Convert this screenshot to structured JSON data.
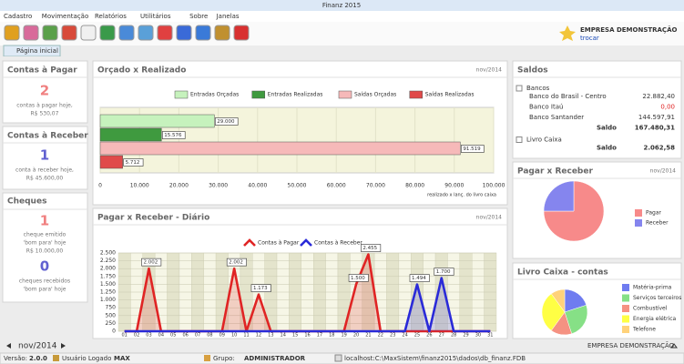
{
  "window": {
    "title": "Finanz 2015"
  },
  "menu": [
    "Cadastro",
    "Movimentação",
    "Relatórios",
    "Utilitários",
    "Sobre",
    "Janelas"
  ],
  "company": {
    "name": "EMPRESA DEMONSTRAÇÃO",
    "action": "trocar"
  },
  "tab": "Página inicial",
  "panels": {
    "pagar": {
      "title": "Contas à Pagar",
      "count": "2",
      "text": "contas à pagar hoje,",
      "amount": "R$ 530,07"
    },
    "receber": {
      "title": "Contas à Receber",
      "count": "1",
      "text": "conta à receber hoje,",
      "amount": "R$ 45.600,00"
    },
    "cheques": {
      "title": "Cheques",
      "issued_count": "1",
      "issued_text": "cheque emitido",
      "issued_when": "'bom para' hoje",
      "issued_amount": "R$ 10.000,00",
      "received_count": "0",
      "received_text": "cheques recebidos",
      "received_when": "'bom para' hoje"
    }
  },
  "period": "nov/2014",
  "saldos": {
    "title": "Saldos",
    "groups": [
      {
        "name": "Bancos",
        "rows": [
          {
            "name": "Banco do Brasil - Centro",
            "value": "22.882,40"
          },
          {
            "name": "Banco Itaú",
            "value": "0,00"
          },
          {
            "name": "Banco Santander",
            "value": "144.597,91"
          }
        ],
        "total_label": "Saldo",
        "total": "167.480,31"
      },
      {
        "name": "Livro Caixa",
        "rows": [],
        "total_label": "Saldo",
        "total": "2.062,58"
      }
    ]
  },
  "chart_data": [
    {
      "type": "hbar",
      "title": "Orçado x Realizado",
      "period": "nov/2014",
      "categories": [
        "Entradas Orçadas",
        "Entradas Realizadas",
        "Saídas Orçadas",
        "Saídas Realizadas"
      ],
      "values": [
        29000,
        15576,
        91519,
        5712
      ],
      "value_labels": [
        "29.000",
        "15.576",
        "91.519",
        "5.712"
      ],
      "colors": [
        "#c6f2bd",
        "#3f9a3f",
        "#f6b9b9",
        "#e04a4a"
      ],
      "xlim": [
        0,
        100000
      ],
      "xticks": [
        0,
        {
          "value": 10000,
          "label": "10.000"
        },
        {
          "value": 20000,
          "label": "20.000"
        },
        {
          "value": 30000,
          "label": "30.000"
        },
        {
          "value": 40000,
          "label": "40.000"
        },
        {
          "value": 50000,
          "label": "50.000"
        },
        {
          "value": 60000,
          "label": "60.000"
        },
        {
          "value": 70000,
          "label": "70.000"
        },
        {
          "value": 80000,
          "label": "80.000"
        },
        {
          "value": 90000,
          "label": "90.000"
        },
        {
          "value": 100000,
          "label": "100.000"
        }
      ],
      "note": "realizado x lanç. do livro caixa",
      "grid": true
    },
    {
      "type": "area",
      "title": "Pagar x Receber - Diário",
      "period": "nov/2014",
      "categories": [
        "01",
        "02",
        "03",
        "04",
        "05",
        "06",
        "07",
        "08",
        "09",
        "10",
        "11",
        "12",
        "13",
        "14",
        "15",
        "16",
        "17",
        "18",
        "19",
        "20",
        "21",
        "22",
        "23",
        "24",
        "25",
        "26",
        "27",
        "28",
        "29",
        "30",
        "31"
      ],
      "series": [
        {
          "name": "Contas à Pagar",
          "color": "#e02424",
          "values": [
            0,
            0,
            2002,
            0,
            0,
            0,
            0,
            0,
            0,
            2002,
            0,
            1173,
            0,
            0,
            0,
            0,
            0,
            0,
            0,
            1500,
            2455,
            0,
            0,
            0,
            0,
            0,
            0,
            0,
            0,
            0,
            0
          ],
          "value_labels": [
            null,
            null,
            "2.002",
            null,
            null,
            null,
            null,
            null,
            null,
            "2.002",
            null,
            "1.173",
            null,
            null,
            null,
            null,
            null,
            null,
            null,
            "1.500",
            "2.455",
            null,
            null,
            null,
            null,
            null,
            null,
            null,
            null,
            null,
            null
          ]
        },
        {
          "name": "Contas à Receber",
          "color": "#2a2ad8",
          "values": [
            0,
            0,
            0,
            0,
            0,
            0,
            0,
            0,
            0,
            0,
            0,
            0,
            0,
            0,
            0,
            0,
            0,
            0,
            0,
            0,
            0,
            0,
            0,
            0,
            1494,
            0,
            1700,
            0,
            0,
            0,
            0
          ],
          "value_labels": [
            null,
            null,
            null,
            null,
            null,
            null,
            null,
            null,
            null,
            null,
            null,
            null,
            null,
            null,
            null,
            null,
            null,
            null,
            null,
            null,
            null,
            null,
            null,
            null,
            "1.494",
            null,
            "1.700",
            null,
            null,
            null,
            null
          ]
        }
      ],
      "ylim": [
        0,
        2500
      ],
      "yticks": [
        0,
        250,
        500,
        750,
        {
          "value": 1000,
          "label": "1.000"
        },
        {
          "value": 1250,
          "label": "1.250"
        },
        {
          "value": 1500,
          "label": "1.500"
        },
        {
          "value": 1750,
          "label": "1.750"
        },
        {
          "value": 2000,
          "label": "2.000"
        },
        {
          "value": 2250,
          "label": "2.250"
        },
        {
          "value": 2500,
          "label": "2.500"
        }
      ],
      "grid": true
    },
    {
      "type": "pie",
      "title": "Pagar x Receber",
      "period": "nov/2014",
      "categories": [
        "Pagar",
        "Receber"
      ],
      "values": [
        75,
        25
      ],
      "colors": [
        "#f78a8a",
        "#8585ee"
      ]
    },
    {
      "type": "pie",
      "title": "Livro Caixa - contas",
      "categories": [
        "Matéria-prima",
        "Serviços terceiros",
        "Combustível",
        "Energia elétrica",
        "Telefone"
      ],
      "values": [
        20,
        25,
        15,
        30,
        10
      ],
      "colors": [
        "#6f7cf0",
        "#86e086",
        "#f59282",
        "#ffff44",
        "#ffd27a"
      ]
    }
  ],
  "status": {
    "version_label": "Versão:",
    "version": "2.0.0",
    "user_label": "Usuário Logado",
    "user": "MAX",
    "group_label": "Grupo:",
    "group": "ADMINISTRADOR",
    "database": "localhost:C:\\MaxSistem\\finanz2015\\dados\\db_finanz.FDB"
  },
  "footer_company": "EMPRESA DEMONSTRAÇÃO"
}
